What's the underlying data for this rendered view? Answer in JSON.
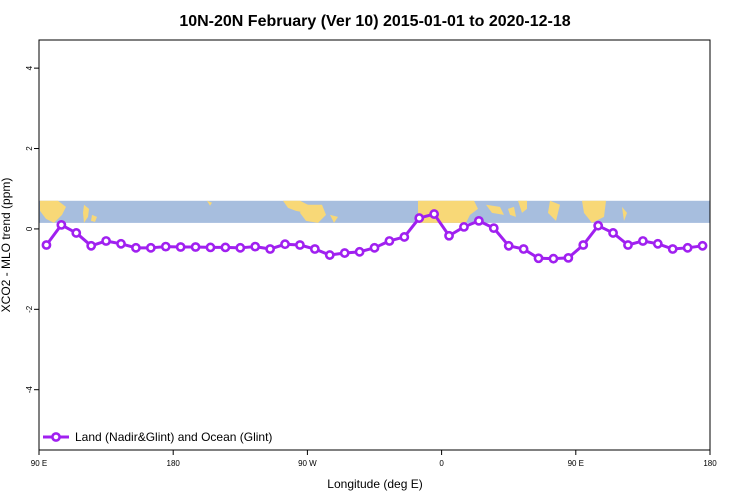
{
  "chart_data": {
    "type": "line",
    "title": "10N-20N February (Ver 10)   2015-01-01 to 2020-12-18",
    "xlabel": "Longitude (deg E)",
    "ylabel": "XCO2 - MLO trend (ppm)",
    "x_ticks": [
      {
        "value": 90,
        "label": "90 E"
      },
      {
        "value": 180,
        "label": "180"
      },
      {
        "value": 270,
        "label": "90 W"
      },
      {
        "value": 360,
        "label": "0"
      },
      {
        "value": 450,
        "label": "90 E"
      },
      {
        "value": 540,
        "label": "180"
      }
    ],
    "y_ticks": [
      -4,
      -2,
      0,
      2,
      4
    ],
    "xlim": [
      90,
      540
    ],
    "ylim": [
      -5.5,
      4.7
    ],
    "grid": false,
    "legend_position": "bottom-left",
    "map_strip": {
      "ymin": 0.15,
      "ymax": 0.7,
      "ocean_color": "#a7bede",
      "land_color": "#f8d877"
    },
    "series": [
      {
        "name": "Land (Nadir&Glint) and Ocean (Glint)",
        "color": "#a020f0",
        "x": [
          95,
          105,
          115,
          125,
          135,
          145,
          155,
          165,
          175,
          185,
          195,
          205,
          215,
          225,
          235,
          245,
          255,
          265,
          275,
          285,
          295,
          305,
          315,
          325,
          335,
          345,
          355,
          365,
          375,
          385,
          395,
          405,
          415,
          425,
          435,
          445,
          455,
          465,
          475,
          485,
          495,
          505,
          515,
          525,
          535
        ],
        "y": [
          -0.4,
          0.1,
          -0.1,
          -0.42,
          -0.3,
          -0.37,
          -0.47,
          -0.47,
          -0.44,
          -0.45,
          -0.45,
          -0.46,
          -0.46,
          -0.47,
          -0.44,
          -0.5,
          -0.38,
          -0.4,
          -0.5,
          -0.65,
          -0.6,
          -0.57,
          -0.47,
          -0.3,
          -0.2,
          0.27,
          0.37,
          -0.17,
          0.05,
          0.2,
          0.02,
          -0.42,
          -0.5,
          -0.73,
          -0.74,
          -0.72,
          -0.4,
          0.08,
          -0.1,
          -0.4,
          -0.3,
          -0.37,
          -0.5,
          -0.47,
          -0.42
        ]
      }
    ]
  }
}
